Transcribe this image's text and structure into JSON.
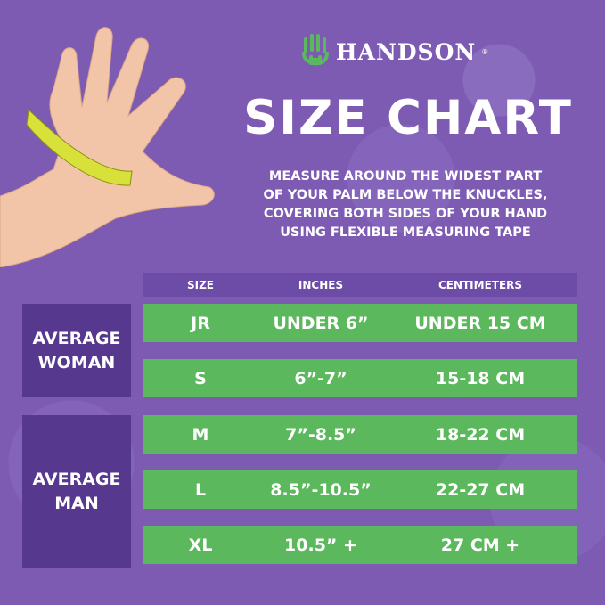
{
  "brand": {
    "name": "HANDSON",
    "registered": "®",
    "logo_color": "#5cb85c"
  },
  "title": "SIZE CHART",
  "instructions": [
    "MEASURE AROUND THE WIDEST PART",
    "OF YOUR PALM BELOW THE KNUCKLES,",
    "COVERING BOTH SIDES OF YOUR HAND",
    "USING FLEXIBLE MEASURING TAPE"
  ],
  "table": {
    "headers": [
      "SIZE",
      "INCHES",
      "CENTIMETERS"
    ],
    "groups": [
      {
        "label_lines": [
          "AVERAGE",
          "WOMAN"
        ]
      },
      {
        "label_lines": [
          "AVERAGE",
          "MAN"
        ]
      }
    ],
    "rows": [
      [
        "JR",
        "UNDER 6”",
        "UNDER 15 CM"
      ],
      [
        "S",
        "6”-7”",
        "15-18 CM"
      ],
      [
        "M",
        "7”-8.5”",
        "18-22 CM"
      ],
      [
        "L",
        "8.5”-10.5”",
        "22-27 CM"
      ],
      [
        "XL",
        "10.5” +",
        "27 CM +"
      ]
    ]
  },
  "colors": {
    "background": "#7d5bb3",
    "row": "#5cb85c",
    "header": "#6c4ca6",
    "group": "#56398f",
    "tape": "#d8e03a"
  }
}
